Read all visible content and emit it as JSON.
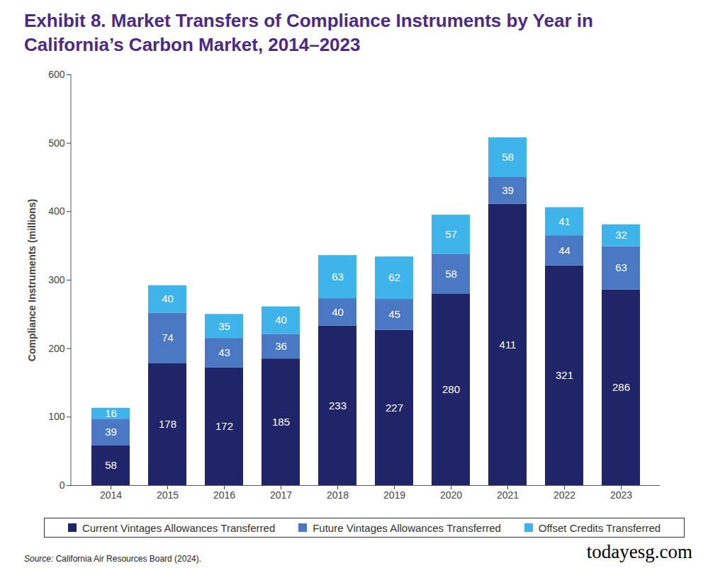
{
  "chart_data": {
    "type": "bar",
    "stacked": true,
    "data_labels": true,
    "title": "Exhibit 8. Market Transfers of Compliance Instruments by Year in California’s Carbon Market, 2014–2023",
    "y_label": "Compliance Instruments (millions)",
    "source": "Source: California Air Resources Board (2024).",
    "watermark": "todayesg.com",
    "categories": [
      "2014",
      "2015",
      "2016",
      "2017",
      "2018",
      "2019",
      "2020",
      "2021",
      "2022",
      "2023"
    ],
    "series": [
      {
        "name": "Current Vintages Allowances Transferred",
        "color": "#1f2568",
        "values": [
          58,
          178,
          172,
          185,
          233,
          227,
          280,
          411,
          321,
          286
        ]
      },
      {
        "name": "Future Vintages Allowances Transferred",
        "color": "#4a78c3",
        "values": [
          39,
          74,
          43,
          36,
          40,
          45,
          58,
          39,
          44,
          63
        ]
      },
      {
        "name": "Offset Credits Transferred",
        "color": "#3eb4ea",
        "values": [
          16,
          40,
          35,
          40,
          63,
          62,
          57,
          58,
          41,
          32
        ]
      }
    ],
    "ylim": [
      0,
      600
    ],
    "yticks": [
      0,
      100,
      200,
      300,
      400,
      500,
      600
    ],
    "grid": false,
    "legend": "bottom"
  }
}
